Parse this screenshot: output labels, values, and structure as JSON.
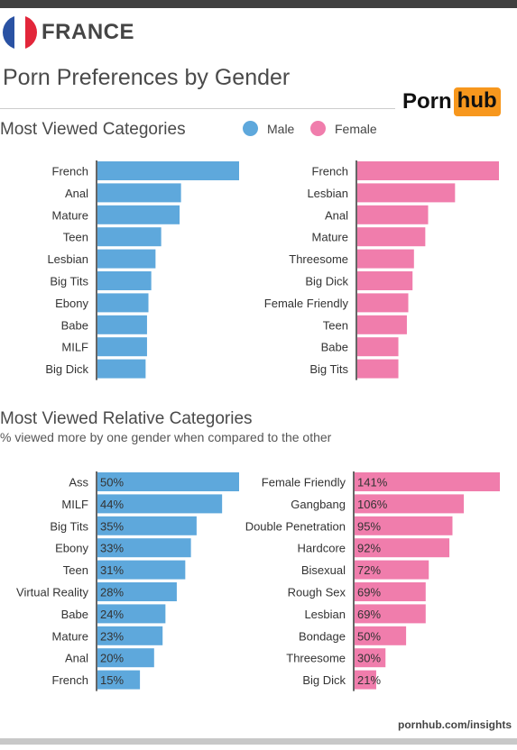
{
  "header": {
    "country": "FRANCE",
    "title": "Porn Preferences by Gender",
    "logo_left": "Porn",
    "logo_right": "hub"
  },
  "legend": {
    "male": "Male",
    "female": "Female"
  },
  "colors": {
    "male": "#5ea8dc",
    "female": "#f07dac",
    "flag_blue": "#2a52a3",
    "flag_white": "#ffffff",
    "flag_red": "#e2263a",
    "logo_accent": "#f7971d"
  },
  "footer": "pornhub.com/insights",
  "chart_data": [
    {
      "type": "bar",
      "title": "Most Viewed Categories",
      "series": [
        {
          "name": "Male",
          "categories": [
            "French",
            "Anal",
            "Mature",
            "Teen",
            "Lesbian",
            "Big Tits",
            "Ebony",
            "Babe",
            "MILF",
            "Big Dick"
          ],
          "values": [
            100,
            59,
            58,
            45,
            41,
            38,
            36,
            35,
            35,
            34
          ]
        },
        {
          "name": "Female",
          "categories": [
            "French",
            "Lesbian",
            "Anal",
            "Mature",
            "Threesome",
            "Big Dick",
            "Female Friendly",
            "Teen",
            "Babe",
            "Big Tits"
          ],
          "values": [
            100,
            69,
            50,
            48,
            40,
            39,
            36,
            35,
            29,
            29
          ]
        }
      ]
    },
    {
      "type": "bar",
      "title": "Most Viewed Relative Categories",
      "subtitle": "% viewed more by one gender when compared to the other",
      "series": [
        {
          "name": "Male",
          "categories": [
            "Ass",
            "MILF",
            "Big Tits",
            "Ebony",
            "Teen",
            "Virtual Reality",
            "Babe",
            "Mature",
            "Anal",
            "French"
          ],
          "values": [
            50,
            44,
            35,
            33,
            31,
            28,
            24,
            23,
            20,
            15
          ],
          "labels": [
            "50%",
            "44%",
            "35%",
            "33%",
            "31%",
            "28%",
            "24%",
            "23%",
            "20%",
            "15%"
          ]
        },
        {
          "name": "Female",
          "categories": [
            "Female Friendly",
            "Gangbang",
            "Double Penetration",
            "Hardcore",
            "Bisexual",
            "Rough Sex",
            "Lesbian",
            "Bondage",
            "Threesome",
            "Big Dick"
          ],
          "values": [
            141,
            106,
            95,
            92,
            72,
            69,
            69,
            50,
            30,
            21
          ],
          "labels": [
            "141%",
            "106%",
            "95%",
            "92%",
            "72%",
            "69%",
            "69%",
            "50%",
            "30%",
            "21%"
          ]
        }
      ]
    }
  ]
}
